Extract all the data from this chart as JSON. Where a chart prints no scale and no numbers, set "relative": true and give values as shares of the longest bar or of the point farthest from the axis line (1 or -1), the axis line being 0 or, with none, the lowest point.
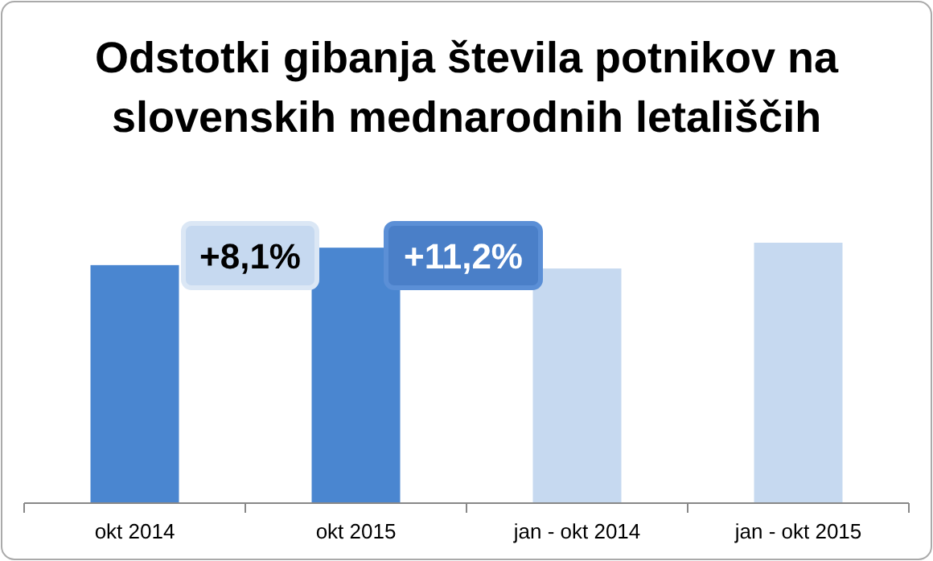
{
  "chart_data": {
    "type": "bar",
    "title": "Odstotki gibanja števila potnikov na slovenskih mednarodnih letališčih",
    "categories": [
      "okt 2014",
      "okt 2015",
      "jan - okt 2014",
      "jan - okt 2015"
    ],
    "values": [
      0.914,
      0.981,
      0.901,
      1
    ],
    "colors": [
      "#4a86d0",
      "#4a86d0",
      "#c6d9f0",
      "#c6d9f0"
    ],
    "relative": true,
    "grid": false,
    "annotations": [
      "+8,1%",
      "+11,2%"
    ]
  }
}
